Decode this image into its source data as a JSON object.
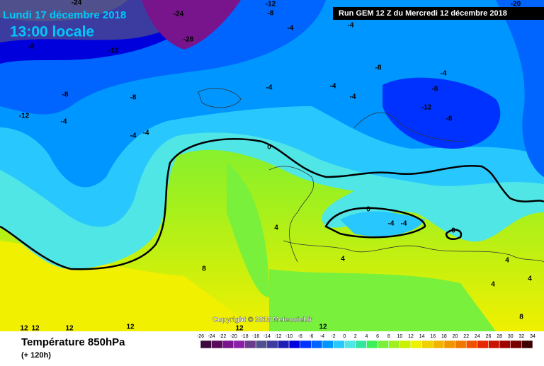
{
  "header": {
    "date": "Lundi 17 décembre 2018",
    "time": "13:00 locale",
    "run": "Run GEM 12 Z du Mercredi 12 décembre 2018"
  },
  "copyright": "Copyright © 2018 Meteociel.fr",
  "footer": {
    "title": "Température 850hPa",
    "lead": "(+ 120h)"
  },
  "contour_labels": [
    -24,
    -24,
    -12,
    -8,
    -20,
    -28,
    -4,
    -4,
    -8,
    -16,
    -8,
    -4,
    -8,
    -8,
    -4,
    -4,
    -4,
    -8,
    -12,
    -8,
    -12,
    -4,
    -4,
    -4,
    0,
    0,
    -4,
    -4,
    0,
    4,
    4,
    4,
    4,
    8,
    4,
    8,
    12,
    12,
    12,
    12,
    12,
    12
  ],
  "legend": {
    "ticks": [
      -26,
      -24,
      -22,
      -20,
      -18,
      -16,
      -14,
      -12,
      -10,
      -8,
      -6,
      -4,
      -2,
      0,
      2,
      4,
      6,
      8,
      10,
      12,
      14,
      16,
      18,
      20,
      22,
      24,
      26,
      28,
      30,
      32,
      34
    ],
    "colors": [
      "#3c0a3c",
      "#5a0a5a",
      "#78148c",
      "#8c1eaa",
      "#6a3c8c",
      "#50508c",
      "#3c3ca0",
      "#1e1eb4",
      "#0000dc",
      "#0032ff",
      "#0064ff",
      "#0096ff",
      "#28c8ff",
      "#50e6e6",
      "#32e6a0",
      "#3cf05a",
      "#78f03c",
      "#a0f01e",
      "#c8f000",
      "#f0f000",
      "#f0d200",
      "#f0b400",
      "#f09600",
      "#f07800",
      "#f05000",
      "#e62800",
      "#c81400",
      "#a00000",
      "#780000",
      "#3c0000"
    ]
  }
}
